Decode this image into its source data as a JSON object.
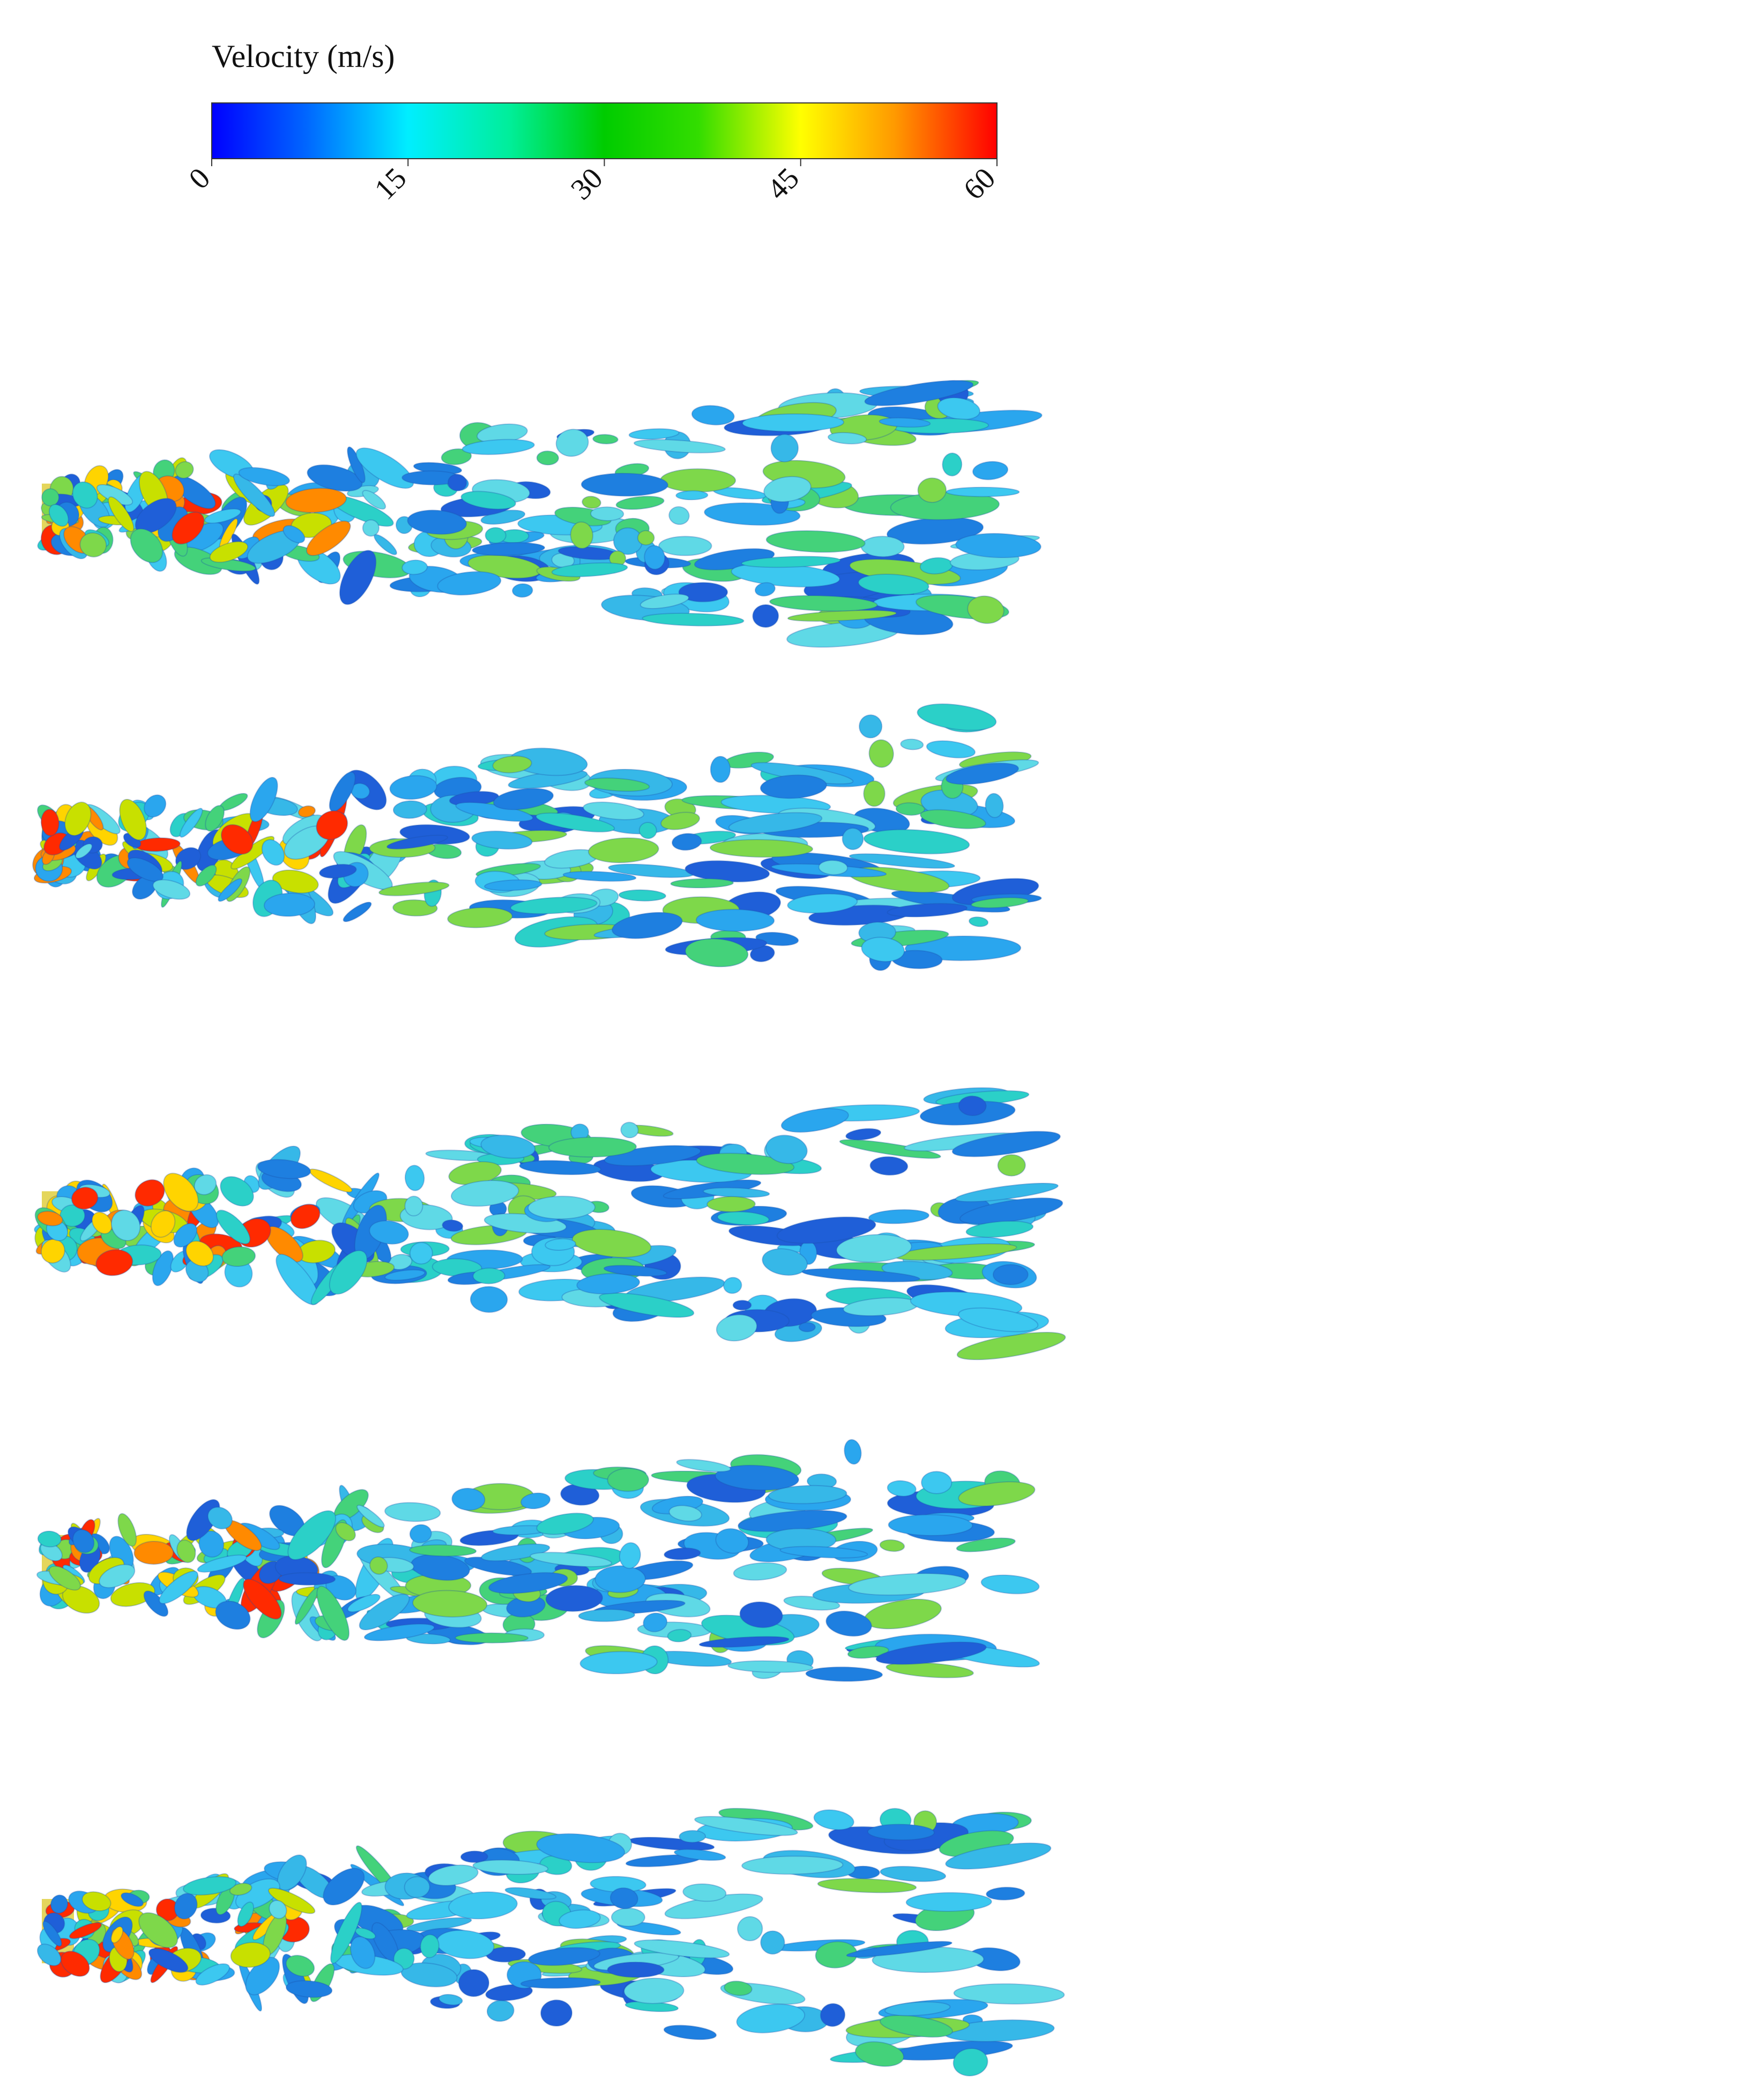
{
  "colorbar": {
    "title": "Velocity (m/s)",
    "range": [
      0,
      60
    ],
    "ticks": [
      0,
      15,
      30,
      45,
      60
    ]
  }
}
